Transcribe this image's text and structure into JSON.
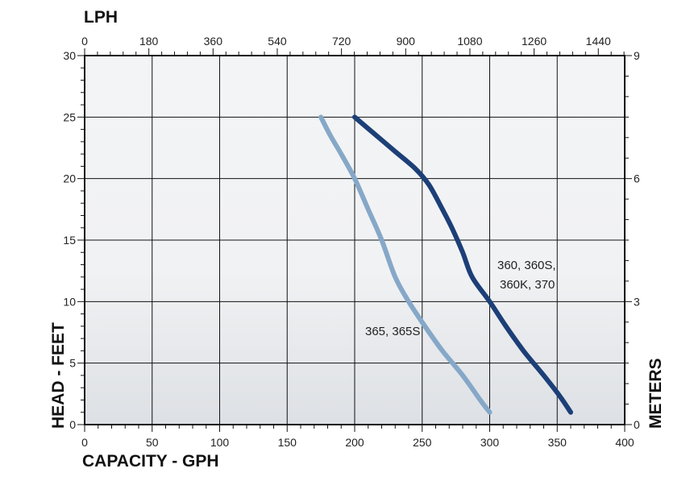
{
  "chart_data": {
    "type": "line",
    "x_bottom": {
      "label": "CAPACITY - GPH",
      "range": [
        0,
        400
      ],
      "ticks": [
        0,
        50,
        100,
        150,
        200,
        250,
        300,
        350,
        400
      ]
    },
    "x_top": {
      "label": "LPH",
      "range": [
        0,
        1514
      ],
      "ticks": [
        0,
        180,
        360,
        540,
        720,
        900,
        1080,
        1260,
        1440
      ]
    },
    "y_left": {
      "label": "HEAD - FEET",
      "range": [
        0,
        30
      ],
      "ticks": [
        0,
        5,
        10,
        15,
        20,
        25,
        30
      ]
    },
    "y_right": {
      "label": "METERS",
      "range": [
        0,
        9
      ],
      "ticks": [
        0,
        3,
        6,
        9
      ]
    },
    "grid": true,
    "series": [
      {
        "name": "365, 365S",
        "color": "#86a8c8",
        "points": [
          [
            175,
            25
          ],
          [
            182,
            23.5
          ],
          [
            190,
            22
          ],
          [
            200,
            20
          ],
          [
            210,
            17.5
          ],
          [
            220,
            15
          ],
          [
            230,
            12
          ],
          [
            240,
            10
          ],
          [
            252,
            8
          ],
          [
            265,
            6
          ],
          [
            280,
            4
          ],
          [
            293,
            2
          ],
          [
            300,
            1
          ]
        ]
      },
      {
        "name": "360, 360S, 360K, 370",
        "color": "#1c3f77",
        "points": [
          [
            200,
            25
          ],
          [
            215,
            23.6
          ],
          [
            230,
            22.2
          ],
          [
            245,
            20.8
          ],
          [
            255,
            19.5
          ],
          [
            265,
            17.5
          ],
          [
            272,
            16
          ],
          [
            280,
            14
          ],
          [
            287,
            12
          ],
          [
            300,
            10
          ],
          [
            312,
            8
          ],
          [
            325,
            6
          ],
          [
            340,
            4
          ],
          [
            352,
            2.3
          ],
          [
            360,
            1
          ]
        ]
      }
    ]
  }
}
